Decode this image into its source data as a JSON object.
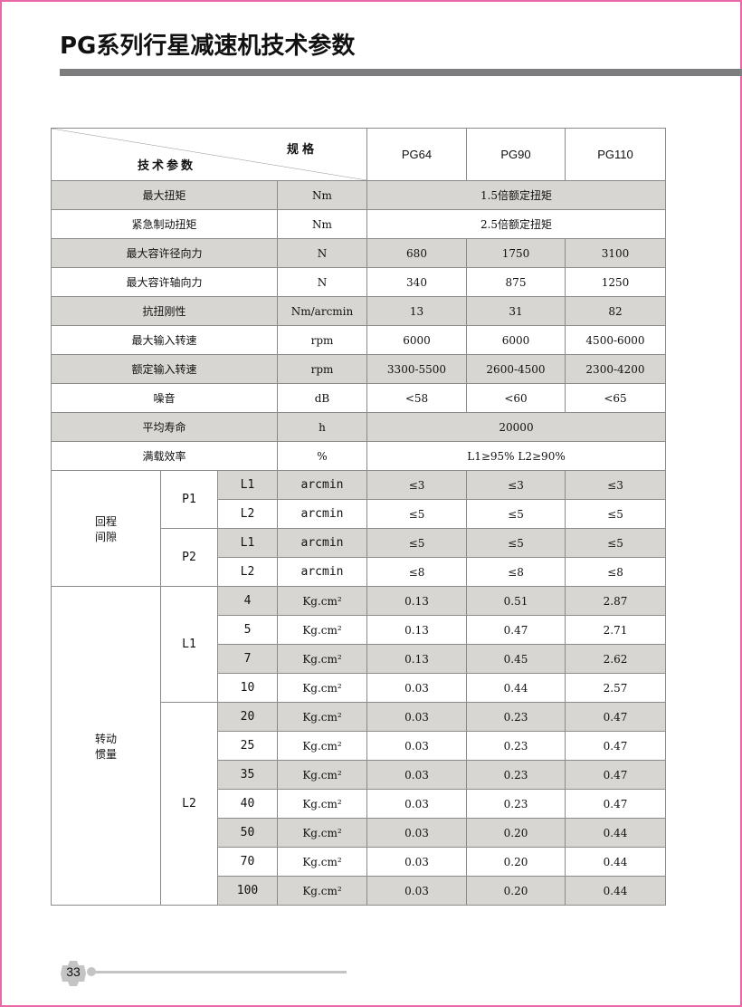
{
  "page": {
    "title": "PG系列行星减速机技术参数",
    "page_number": "33",
    "border_color": "#e868a8",
    "shade_color": "#d8d6d2"
  },
  "header": {
    "spec_label": "规格",
    "param_label": "技术参数",
    "models": [
      "PG64",
      "PG90",
      "PG110"
    ]
  },
  "rows": [
    {
      "label": "最大扭矩",
      "unit": "Nm",
      "merged": "1.5倍额定扭矩",
      "shaded": true
    },
    {
      "label": "紧急制动扭矩",
      "unit": "Nm",
      "merged": "2.5倍额定扭矩",
      "shaded": false
    },
    {
      "label": "最大容许径向力",
      "unit": "N",
      "values": [
        "680",
        "1750",
        "3100"
      ],
      "shaded": true
    },
    {
      "label": "最大容许轴向力",
      "unit": "N",
      "values": [
        "340",
        "875",
        "1250"
      ],
      "shaded": false
    },
    {
      "label": "抗扭刚性",
      "unit": "Nm/arcmin",
      "values": [
        "13",
        "31",
        "82"
      ],
      "shaded": true
    },
    {
      "label": "最大输入转速",
      "unit": "rpm",
      "values": [
        "6000",
        "6000",
        "4500-6000"
      ],
      "shaded": false
    },
    {
      "label": "额定输入转速",
      "unit": "rpm",
      "values": [
        "3300-5500",
        "2600-4500",
        "2300-4200"
      ],
      "shaded": true
    },
    {
      "label": "噪音",
      "unit": "dB",
      "values": [
        "<58",
        "<60",
        "<65"
      ],
      "shaded": false
    },
    {
      "label": "平均寿命",
      "unit": "h",
      "merged": "20000",
      "shaded": true
    },
    {
      "label": "满载效率",
      "unit": "%",
      "merged": "L1≥95%  L2≥90%",
      "shaded": false
    }
  ],
  "backlash": {
    "label": "回程\n间隙",
    "groups": [
      {
        "name": "P1",
        "rows": [
          {
            "stage": "L1",
            "unit": "arcmin",
            "values": [
              "≤3",
              "≤3",
              "≤3"
            ],
            "shaded": true
          },
          {
            "stage": "L2",
            "unit": "arcmin",
            "values": [
              "≤5",
              "≤5",
              "≤5"
            ],
            "shaded": false
          }
        ]
      },
      {
        "name": "P2",
        "rows": [
          {
            "stage": "L1",
            "unit": "arcmin",
            "values": [
              "≤5",
              "≤5",
              "≤5"
            ],
            "shaded": true
          },
          {
            "stage": "L2",
            "unit": "arcmin",
            "values": [
              "≤8",
              "≤8",
              "≤8"
            ],
            "shaded": false
          }
        ]
      }
    ]
  },
  "inertia": {
    "label": "转动\n惯量",
    "unit": "Kg.cm²",
    "groups": [
      {
        "name": "L1",
        "rows": [
          {
            "ratio": "4",
            "values": [
              "0.13",
              "0.51",
              "2.87"
            ],
            "shaded": true
          },
          {
            "ratio": "5",
            "values": [
              "0.13",
              "0.47",
              "2.71"
            ],
            "shaded": false
          },
          {
            "ratio": "7",
            "values": [
              "0.13",
              "0.45",
              "2.62"
            ],
            "shaded": true
          },
          {
            "ratio": "10",
            "values": [
              "0.03",
              "0.44",
              "2.57"
            ],
            "shaded": false
          }
        ]
      },
      {
        "name": "L2",
        "rows": [
          {
            "ratio": "20",
            "values": [
              "0.03",
              "0.23",
              "0.47"
            ],
            "shaded": true
          },
          {
            "ratio": "25",
            "values": [
              "0.03",
              "0.23",
              "0.47"
            ],
            "shaded": false
          },
          {
            "ratio": "35",
            "values": [
              "0.03",
              "0.23",
              "0.47"
            ],
            "shaded": true
          },
          {
            "ratio": "40",
            "values": [
              "0.03",
              "0.23",
              "0.47"
            ],
            "shaded": false
          },
          {
            "ratio": "50",
            "values": [
              "0.03",
              "0.20",
              "0.44"
            ],
            "shaded": true
          },
          {
            "ratio": "70",
            "values": [
              "0.03",
              "0.20",
              "0.44"
            ],
            "shaded": false
          },
          {
            "ratio": "100",
            "values": [
              "0.03",
              "0.20",
              "0.44"
            ],
            "shaded": true
          }
        ]
      }
    ]
  }
}
